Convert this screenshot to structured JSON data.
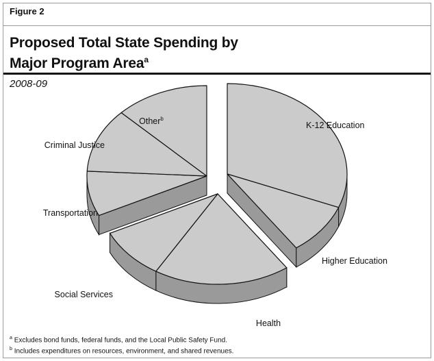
{
  "figure_label": "Figure 2",
  "title_line1": "Proposed Total State Spending by",
  "title_line2": "Major Program Area",
  "title_footnote_mark": "a",
  "subtitle": "2008-09",
  "footnotes": [
    {
      "mark": "a",
      "text": "Excludes bond funds, federal funds, and the Local Public Safety Fund."
    },
    {
      "mark": "b",
      "text": "Includes expenditures on resources, environment, and shared revenues."
    }
  ],
  "chart_data": {
    "type": "pie",
    "title": "Proposed Total State Spending by Major Program Area",
    "subtitle": "2008-09",
    "unit": "percent of total (approximate)",
    "legend": "none",
    "labels_shown": true,
    "slices": [
      {
        "name": "K-12 Education",
        "footnote": "",
        "value": 27,
        "group": "education",
        "color": "#cbcbcb"
      },
      {
        "name": "Higher Education",
        "footnote": "",
        "value": 8,
        "group": "education",
        "color": "#cbcbcb"
      },
      {
        "name": "Health",
        "footnote": "",
        "value": 16,
        "group": "health",
        "color": "#cbcbcb"
      },
      {
        "name": "Social Services",
        "footnote": "",
        "value": 8,
        "group": "health",
        "color": "#cbcbcb"
      },
      {
        "name": "Transportation",
        "footnote": "",
        "value": 7,
        "group": "other",
        "color": "#cbcbcb"
      },
      {
        "name": "Criminal Justice",
        "footnote": "",
        "value": 10,
        "group": "other",
        "color": "#cbcbcb"
      },
      {
        "name": "Other",
        "footnote": "b",
        "value": 11,
        "group": "other",
        "color": "#cbcbcb"
      }
    ],
    "colors": {
      "top": "#cbcbcb",
      "side": "#9a9a9a",
      "outline": "#111111"
    }
  }
}
